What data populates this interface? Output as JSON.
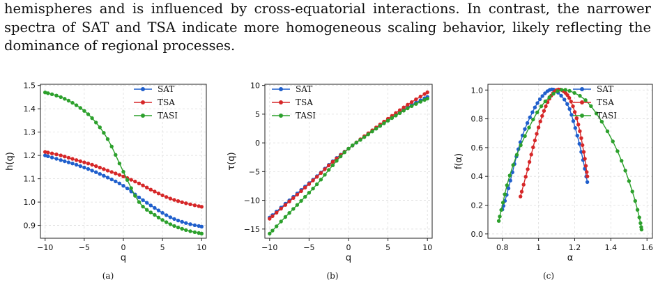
{
  "paragraph": {
    "lines": [
      "hemispheres and is influenced by cross-equatorial interactions. In contrast, the narrower",
      "spectra of SAT and TSA indicate more homogeneous scaling behavior, likely reflecting the",
      "dominance of regional processes."
    ]
  },
  "colors": {
    "SAT": "#1f5fcc",
    "TSA": "#d62728",
    "TASI": "#2ca02c"
  },
  "chart_data": [
    {
      "type": "line",
      "caption": "(a)",
      "xlabel": "q",
      "ylabel": "h(q)",
      "xlim": [
        -10.6,
        10.6
      ],
      "ylim": [
        0.845,
        1.505
      ],
      "xticks": [
        -10,
        -5,
        0,
        5,
        10
      ],
      "yticks": [
        0.9,
        1.0,
        1.1,
        1.2,
        1.3,
        1.4,
        1.5
      ],
      "ytick_labels": [
        "0.9",
        "1.0",
        "1.1",
        "1.2",
        "1.3",
        "1.4",
        "1.5"
      ],
      "grid": true,
      "legend_position": "top-right",
      "series": [
        {
          "name": "SAT",
          "x": [
            -10,
            -8,
            -6,
            -4,
            -2,
            0,
            2,
            4,
            6,
            8,
            10
          ],
          "y": [
            1.2,
            1.18,
            1.16,
            1.135,
            1.105,
            1.07,
            1.02,
            0.975,
            0.935,
            0.91,
            0.895
          ]
        },
        {
          "name": "TSA",
          "x": [
            -10,
            -8,
            -6,
            -4,
            -2,
            0,
            2,
            4,
            6,
            8,
            10
          ],
          "y": [
            1.215,
            1.2,
            1.18,
            1.16,
            1.135,
            1.11,
            1.08,
            1.045,
            1.015,
            0.995,
            0.98
          ]
        },
        {
          "name": "TASI",
          "x": [
            -10,
            -8,
            -6,
            -4,
            -2,
            0,
            2,
            4,
            6,
            8,
            10
          ],
          "y": [
            1.47,
            1.45,
            1.415,
            1.36,
            1.27,
            1.13,
            1.0,
            0.945,
            0.905,
            0.88,
            0.865
          ]
        }
      ]
    },
    {
      "type": "line",
      "caption": "(b)",
      "xlabel": "q",
      "ylabel": "τ(q)",
      "xlim": [
        -10.6,
        10.6
      ],
      "ylim": [
        -16.6,
        10.2
      ],
      "xticks": [
        -10,
        -5,
        0,
        5,
        10
      ],
      "yticks": [
        -15,
        -10,
        -5,
        0,
        5,
        10
      ],
      "ytick_labels": [
        "−15",
        "−10",
        "−5",
        "0",
        "5",
        "10"
      ],
      "grid": true,
      "legend_position": "top-left",
      "series": [
        {
          "name": "SAT",
          "x": [
            -10,
            -8,
            -6,
            -4,
            -2,
            0,
            2,
            4,
            6,
            8,
            10
          ],
          "y": [
            -13.0,
            -10.6,
            -8.2,
            -5.8,
            -3.2,
            -1.0,
            1.05,
            2.95,
            4.8,
            6.6,
            8.0
          ]
        },
        {
          "name": "TSA",
          "x": [
            -10,
            -8,
            -6,
            -4,
            -2,
            0,
            2,
            4,
            6,
            8,
            10
          ],
          "y": [
            -13.2,
            -10.8,
            -8.4,
            -5.9,
            -3.3,
            -1.0,
            1.15,
            3.2,
            5.2,
            7.1,
            8.8
          ]
        },
        {
          "name": "TASI",
          "x": [
            -10,
            -8,
            -6,
            -4,
            -2,
            0,
            2,
            4,
            6,
            8,
            10
          ],
          "y": [
            -15.8,
            -12.9,
            -10.1,
            -7.2,
            -3.9,
            -1.0,
            1.0,
            2.95,
            4.75,
            6.4,
            7.7
          ]
        }
      ]
    },
    {
      "type": "line",
      "caption": "(c)",
      "xlabel": "α",
      "ylabel": "f(α)",
      "xlim": [
        0.72,
        1.63
      ],
      "ylim": [
        -0.03,
        1.04
      ],
      "xticks": [
        0.8,
        1.0,
        1.2,
        1.4,
        1.6
      ],
      "yticks": [
        0.0,
        0.2,
        0.4,
        0.6,
        0.8,
        1.0
      ],
      "ytick_labels": [
        "0.0",
        "0.2",
        "0.4",
        "0.6",
        "0.8",
        "1.0"
      ],
      "grid": true,
      "legend_position": "top-right",
      "series": [
        {
          "name": "SAT",
          "x": [
            0.8,
            0.83,
            0.87,
            0.91,
            0.96,
            1.01,
            1.06,
            1.1,
            1.16,
            1.2,
            1.24,
            1.27
          ],
          "y": [
            0.17,
            0.3,
            0.5,
            0.68,
            0.83,
            0.94,
            1.0,
            0.99,
            0.9,
            0.75,
            0.55,
            0.36
          ]
        },
        {
          "name": "TSA",
          "x": [
            0.9,
            0.94,
            0.98,
            1.02,
            1.06,
            1.1,
            1.14,
            1.18,
            1.22,
            1.25,
            1.27
          ],
          "y": [
            0.26,
            0.45,
            0.65,
            0.82,
            0.94,
            1.0,
            0.99,
            0.92,
            0.76,
            0.57,
            0.4
          ]
        },
        {
          "name": "TASI",
          "x": [
            0.78,
            0.8,
            0.83,
            0.88,
            0.94,
            1.0,
            1.06,
            1.12,
            1.18,
            1.26,
            1.34,
            1.42,
            1.48,
            1.53,
            1.56,
            1.57
          ],
          "y": [
            0.09,
            0.2,
            0.36,
            0.55,
            0.72,
            0.86,
            0.95,
            1.0,
            0.99,
            0.93,
            0.8,
            0.62,
            0.44,
            0.25,
            0.1,
            0.03
          ]
        }
      ]
    }
  ]
}
